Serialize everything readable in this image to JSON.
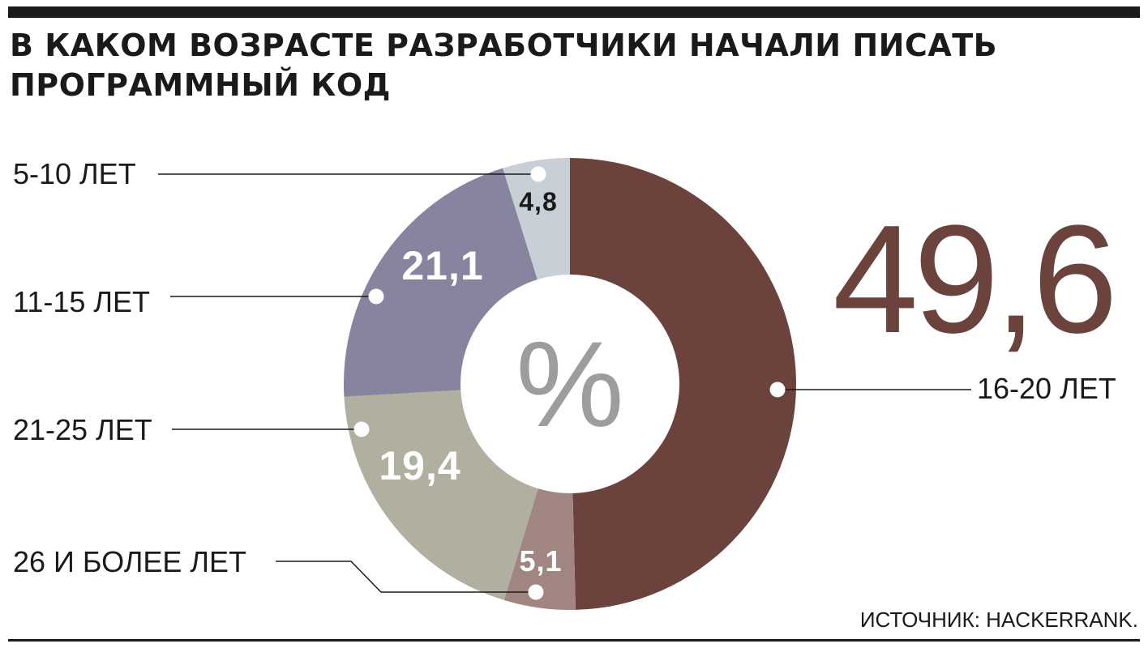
{
  "title": "В КАКОМ ВОЗРАСТЕ РАЗРАБОТЧИКИ НАЧАЛИ ПИСАТЬ ПРОГРАММНЫЙ КОД",
  "source": "ИСТОЧНИК: HACKERRANK.",
  "center_label": "%",
  "chart_data": {
    "type": "pie",
    "title": "В КАКОМ ВОЗРАСТЕ РАЗРАБОТЧИКИ НАЧАЛИ ПИСАТЬ ПРОГРАММНЫЙ КОД",
    "unit": "%",
    "categories": [
      "16-20 ЛЕТ",
      "26 И БОЛЕЕ ЛЕТ",
      "21-25 ЛЕТ",
      "11-15 ЛЕТ",
      "5-10 ЛЕТ"
    ],
    "values": [
      49.6,
      5.1,
      19.4,
      21.1,
      4.8
    ],
    "value_labels": [
      "49,6",
      "5,1",
      "19,4",
      "21,1",
      "4,8"
    ],
    "colors": [
      "#6b433c",
      "#a08580",
      "#b1b0a0",
      "#86849f",
      "#c8cfd6"
    ],
    "value_label_colors": [
      "#6b433c",
      "#ffffff",
      "#ffffff",
      "#ffffff",
      "#1a1a1a"
    ]
  }
}
